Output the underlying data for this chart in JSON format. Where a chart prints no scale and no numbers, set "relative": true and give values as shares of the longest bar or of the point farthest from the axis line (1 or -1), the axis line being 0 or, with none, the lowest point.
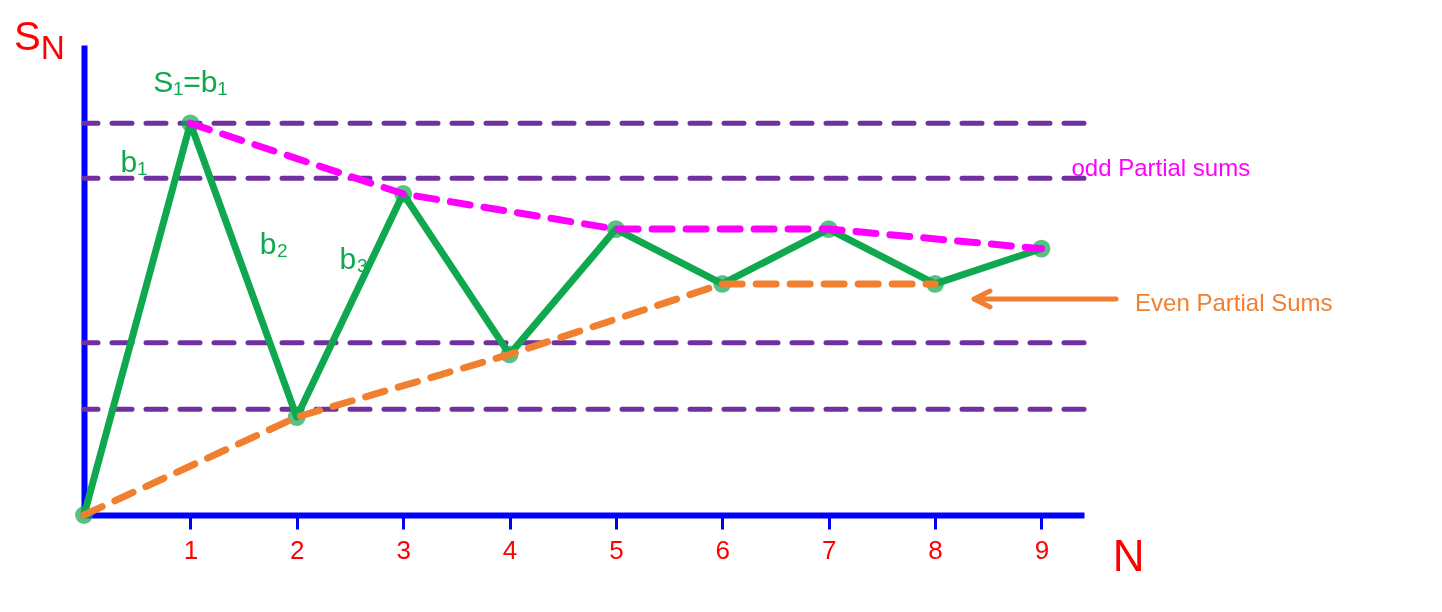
{
  "chart_data": {
    "type": "line",
    "relative": true,
    "xlabel": "N",
    "ylabel": "S$_{N}$",
    "xlim": [
      0,
      9.4
    ],
    "xticks": [
      1,
      2,
      3,
      4,
      5,
      6,
      7,
      8,
      9
    ],
    "tick_labels": "x",
    "marker": "circle",
    "series": [
      {
        "color": "#10a84e",
        "x": [
          0,
          1,
          2,
          3,
          4,
          5,
          6,
          7,
          8,
          9
        ],
        "values": [
          0,
          1,
          0.25,
          0.82,
          0.41,
          0.73,
          0.59,
          0.73,
          0.59,
          0.68
        ],
        "line_style": "solid"
      },
      {
        "name": "odd Partial sums",
        "color": "#ff00ff",
        "x": [
          1,
          3,
          5,
          7,
          9
        ],
        "values": [
          1,
          0.82,
          0.73,
          0.73,
          0.68
        ],
        "marker": "none",
        "line_style": "dashed"
      },
      {
        "name": "Even Partial Sums",
        "color": "#f08030",
        "x": [
          0,
          2,
          4,
          6,
          8
        ],
        "values": [
          0,
          0.25,
          0.41,
          0.59,
          0.59
        ],
        "marker": "none",
        "line_style": "dashed"
      }
    ],
    "ref_lines": [
      {
        "axis": "y",
        "value": 1.0,
        "color": "#7030a0",
        "line_style": "dashed"
      },
      {
        "axis": "y",
        "value": 0.86,
        "color": "#7030a0",
        "line_style": "dashed"
      },
      {
        "axis": "y",
        "value": 0.44,
        "color": "#7030a0",
        "line_style": "dashed"
      },
      {
        "axis": "y",
        "value": 0.27,
        "color": "#7030a0",
        "line_style": "dashed"
      }
    ],
    "annotations": [
      {
        "text": "S₁=b₁",
        "x": 1,
        "y": 1
      },
      "b₁",
      "b₂",
      "b₃"
    ]
  }
}
